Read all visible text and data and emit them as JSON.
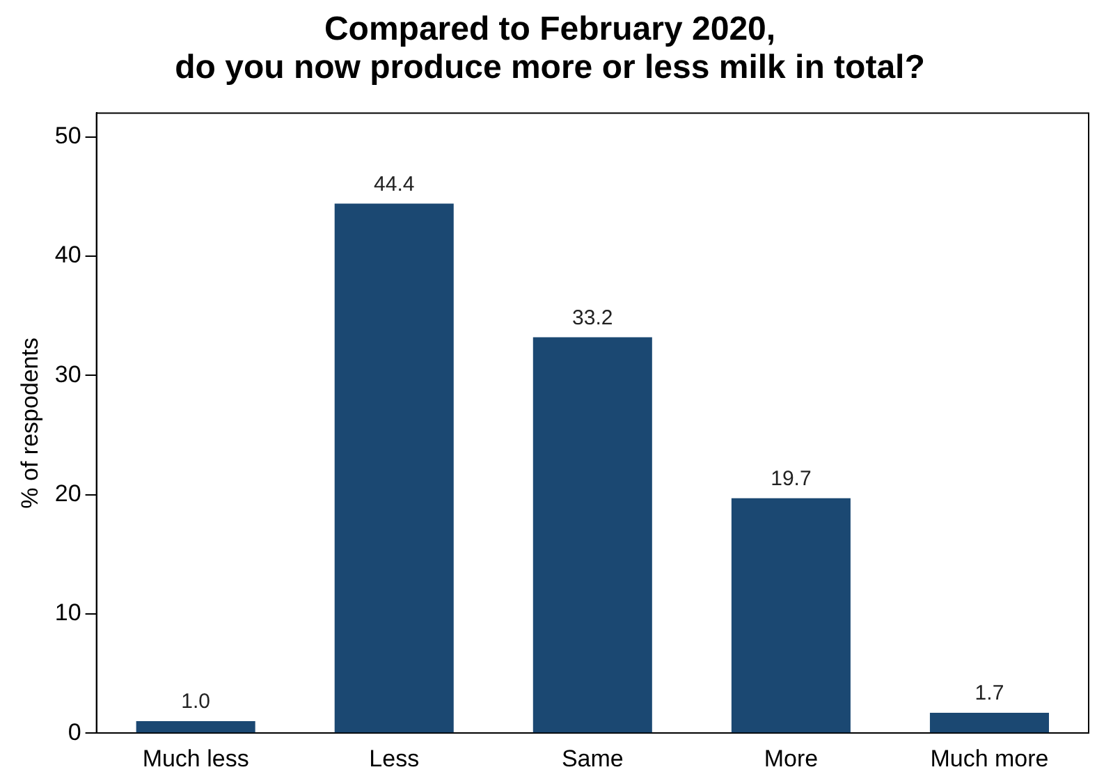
{
  "chart_data": {
    "type": "bar",
    "title": "Compared to February 2020,\ndo you now produce more or less milk in total?",
    "ylabel": "% of respodents",
    "categories": [
      "Much less",
      "Less",
      "Same",
      "More",
      "Much more"
    ],
    "values": [
      1.0,
      44.4,
      33.2,
      19.7,
      1.7
    ],
    "value_labels": [
      "1.0",
      "44.4",
      "33.2",
      "19.7",
      "1.7"
    ],
    "color": "#1b4872",
    "ylim": [
      0,
      52
    ],
    "yticks": [
      0,
      10,
      20,
      30,
      40,
      50
    ],
    "grid": false,
    "legend": false
  }
}
